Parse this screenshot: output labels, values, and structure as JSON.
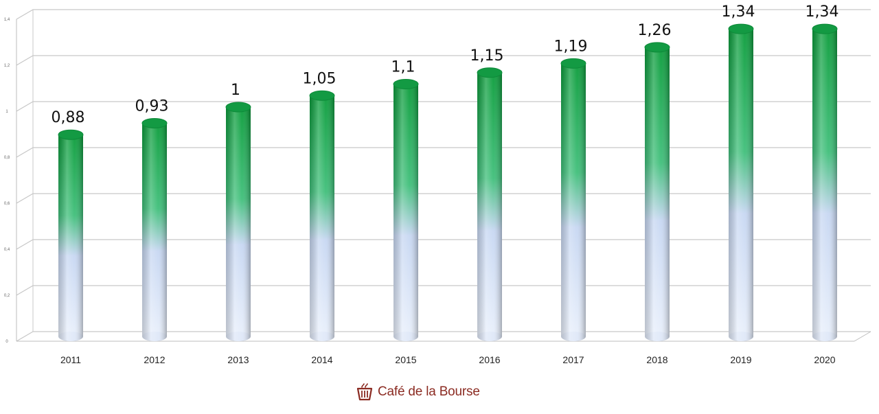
{
  "chart_data": {
    "type": "bar",
    "categories": [
      "2011",
      "2012",
      "2013",
      "2014",
      "2015",
      "2016",
      "2017",
      "2018",
      "2019",
      "2020"
    ],
    "values": [
      0.88,
      0.93,
      1.0,
      1.05,
      1.1,
      1.15,
      1.19,
      1.26,
      1.34,
      1.34
    ],
    "value_labels": [
      "0,88",
      "0,93",
      "1",
      "1,05",
      "1,1",
      "1,15",
      "1,19",
      "1,26",
      "1,34",
      "1,34"
    ],
    "yticks": [
      0,
      0.2,
      0.4,
      0.6,
      0.8,
      1,
      1.2,
      1.4
    ],
    "ytick_labels": [
      "0",
      "0,2",
      "0,4",
      "0,6",
      "0,8",
      "1",
      "1,2",
      "1,4"
    ],
    "ylim": [
      0,
      1.4
    ],
    "title": "",
    "xlabel": "",
    "ylabel": "",
    "grid": true,
    "colors": {
      "bar_top": "#0aa83f",
      "bar_bottom": "#c9d8f5",
      "grid": "#c8c8c8"
    }
  },
  "branding": {
    "text": "Café de la Bourse",
    "icon": "coffee-basket-icon",
    "color": "#8b2b22"
  }
}
